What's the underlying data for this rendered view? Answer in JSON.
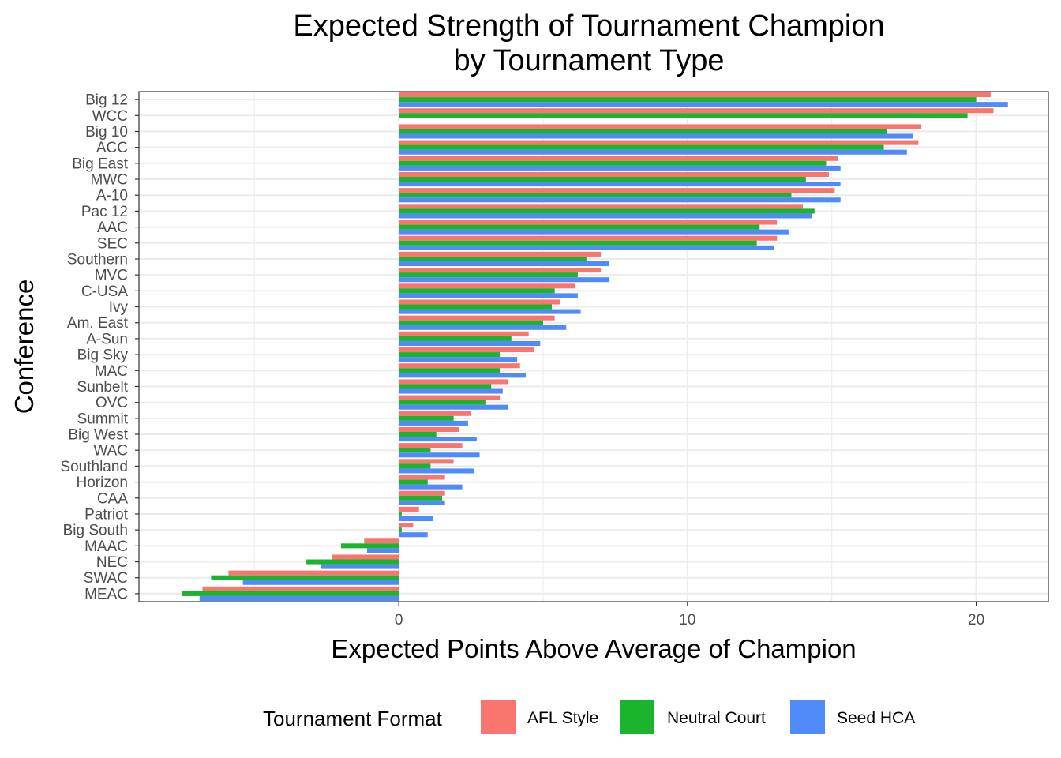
{
  "chart_data": {
    "type": "bar",
    "orientation": "horizontal",
    "title": "Expected Strength of Tournament Champion\nby Tournament Type",
    "xlabel": "Expected Points Above Average of Champion",
    "ylabel": "Conference",
    "xlim": [
      -9,
      22.5
    ],
    "xticks": [
      0,
      10,
      20
    ],
    "grid": true,
    "legend_title": "Tournament Format",
    "legend_position": "bottom",
    "categories": [
      "Big 12",
      "WCC",
      "Big 10",
      "ACC",
      "Big East",
      "MWC",
      "A-10",
      "Pac 12",
      "AAC",
      "SEC",
      "Southern",
      "MVC",
      "C-USA",
      "Ivy",
      "Am. East",
      "A-Sun",
      "Big Sky",
      "MAC",
      "Sunbelt",
      "OVC",
      "Summit",
      "Big West",
      "WAC",
      "Southland",
      "Horizon",
      "CAA",
      "Patriot",
      "Big South",
      "MAAC",
      "NEC",
      "SWAC",
      "MEAC"
    ],
    "series": [
      {
        "name": "AFL Style",
        "color": "#F8766D",
        "values": [
          20.5,
          20.6,
          18.1,
          18.0,
          15.2,
          14.9,
          15.1,
          14.0,
          13.1,
          13.1,
          7.0,
          7.0,
          6.1,
          5.6,
          5.4,
          4.5,
          4.7,
          4.2,
          3.8,
          3.5,
          2.5,
          2.1,
          2.2,
          1.9,
          1.6,
          1.6,
          0.7,
          0.5,
          -1.2,
          -2.3,
          -5.9,
          -6.8
        ]
      },
      {
        "name": "Neutral Court",
        "color": "#1AB42D",
        "values": [
          20.0,
          19.7,
          16.9,
          16.8,
          14.8,
          14.1,
          13.6,
          14.4,
          12.5,
          12.4,
          6.5,
          6.2,
          5.4,
          5.3,
          5.0,
          3.9,
          3.5,
          3.5,
          3.2,
          3.0,
          1.9,
          1.3,
          1.1,
          1.1,
          1.0,
          1.5,
          0.1,
          0.1,
          -2.0,
          -3.2,
          -6.5,
          -7.5
        ]
      },
      {
        "name": "Seed HCA",
        "color": "#4F8BF9",
        "values": [
          21.1,
          null,
          17.8,
          17.6,
          15.3,
          15.3,
          15.3,
          14.3,
          13.5,
          13.0,
          7.3,
          7.3,
          6.2,
          6.3,
          5.8,
          4.9,
          4.1,
          4.4,
          3.6,
          3.8,
          2.4,
          2.7,
          2.8,
          2.6,
          2.2,
          1.6,
          1.2,
          1.0,
          -1.1,
          -2.7,
          -5.4,
          -6.9
        ]
      }
    ]
  }
}
